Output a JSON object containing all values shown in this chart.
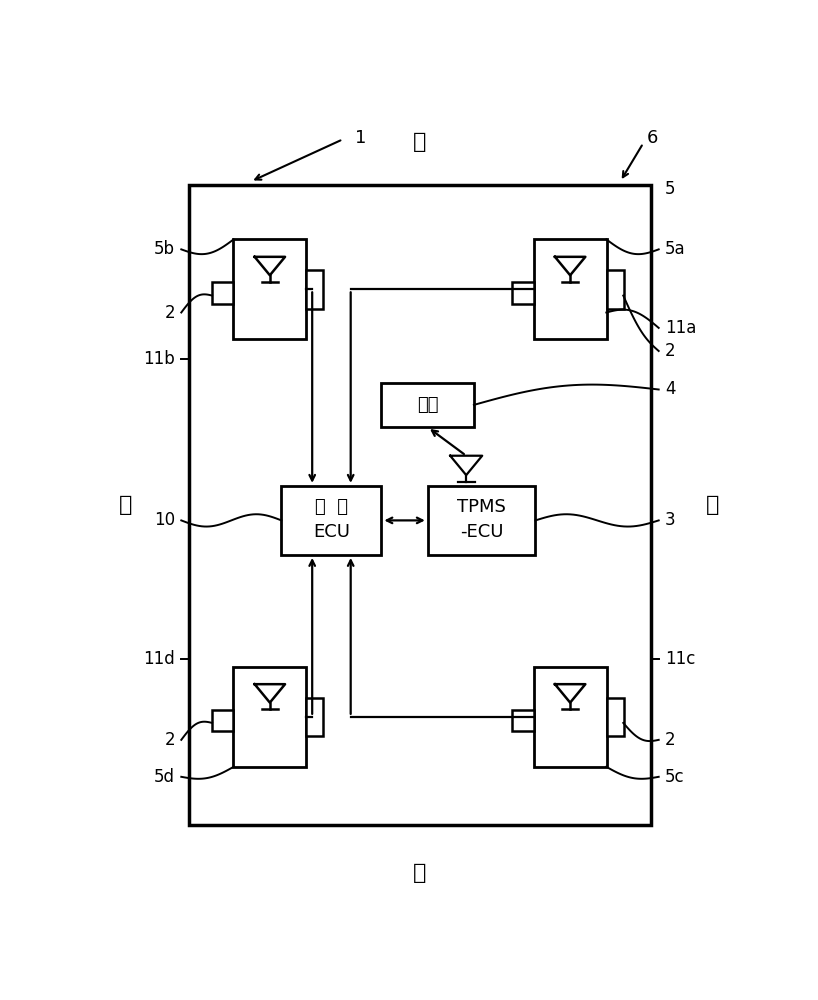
{
  "bg_color": "#ffffff",
  "figsize": [
    8.18,
    10.0
  ],
  "dpi": 100,
  "title_top": "前",
  "title_bottom": "后",
  "title_left": "左",
  "title_right": "右",
  "label_1": "1",
  "label_3": "3",
  "label_4": "4",
  "label_6": "6",
  "label_10": "10",
  "label_2": "2",
  "label_5": "5",
  "label_5a": "5a",
  "label_5b": "5b",
  "label_5c": "5c",
  "label_5d": "5d",
  "label_11a": "11a",
  "label_11b": "11b",
  "label_11c": "11c",
  "label_11d": "11d",
  "ecu_line1": "制  动",
  "ecu_line2": "ECU",
  "tpms_line1": "TPMS",
  "tpms_line2": "-ECU",
  "meter_text": "仪表"
}
